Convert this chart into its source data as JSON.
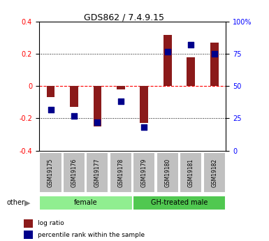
{
  "title": "GDS862 / 7.4.9.15",
  "samples": [
    "GSM19175",
    "GSM19176",
    "GSM19177",
    "GSM19178",
    "GSM19179",
    "GSM19180",
    "GSM19181",
    "GSM19182"
  ],
  "log_ratio": [
    -0.07,
    -0.13,
    -0.25,
    -0.02,
    -0.23,
    0.32,
    0.18,
    0.27
  ],
  "percentile_rank": [
    32,
    27,
    22,
    38,
    18,
    77,
    82,
    75
  ],
  "groups": [
    {
      "label": "female",
      "indices": [
        0,
        1,
        2,
        3
      ],
      "color": "#90EE90"
    },
    {
      "label": "GH-treated male",
      "indices": [
        4,
        5,
        6,
        7
      ],
      "color": "#50C850"
    }
  ],
  "bar_color": "#8B1A1A",
  "dot_color": "#00008B",
  "ylim_left": [
    -0.4,
    0.4
  ],
  "ylim_right": [
    0,
    100
  ],
  "yticks_left": [
    -0.4,
    -0.2,
    0.0,
    0.2,
    0.4
  ],
  "ytick_labels_left": [
    "-0.4",
    "-0.2",
    "0",
    "0.2",
    "0.4"
  ],
  "yticks_right": [
    0,
    25,
    50,
    75,
    100
  ],
  "ytick_labels_right": [
    "0",
    "25",
    "50",
    "75",
    "100%"
  ],
  "legend_items": [
    {
      "label": "log ratio",
      "color": "#8B1A1A"
    },
    {
      "label": "percentile rank within the sample",
      "color": "#00008B"
    }
  ],
  "other_label": "other",
  "sample_bg_color": "#C0C0C0"
}
